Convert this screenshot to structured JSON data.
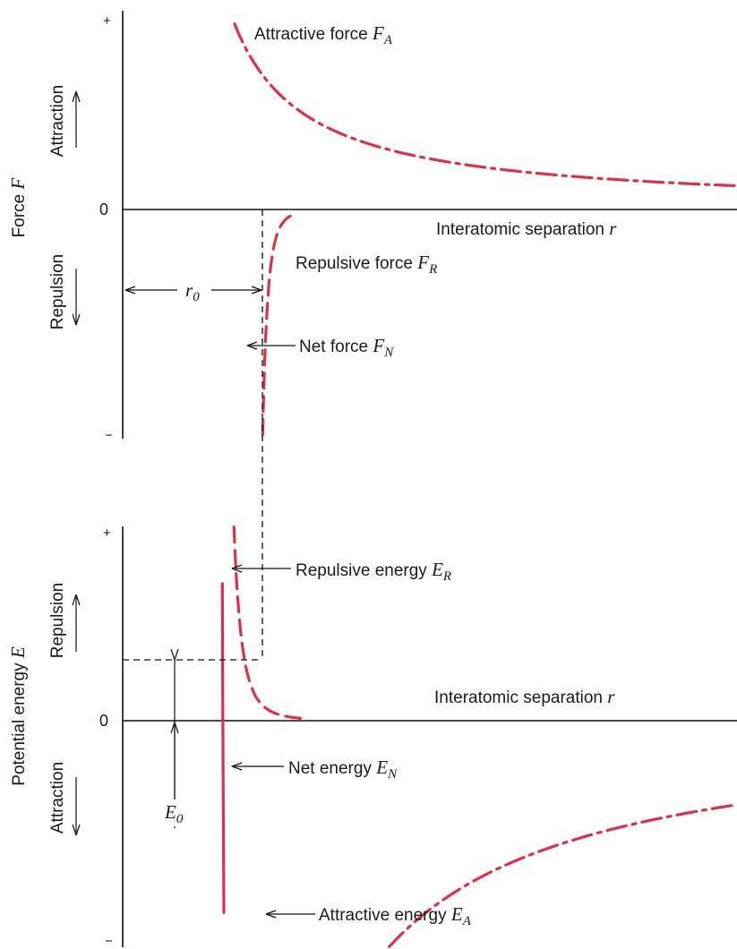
{
  "colors": {
    "curve": "#d9324a",
    "axis": "#111111"
  },
  "chart_data": [
    {
      "type": "line",
      "xlabel": "Interatomic separation",
      "xlabel_symbol": "r",
      "ylabel": "Force",
      "ylabel_symbol": "F",
      "ytick_labels": {
        "top": "+",
        "zero": "0",
        "bottom": "−"
      },
      "region_labels": {
        "upper": "Attraction",
        "lower": "Repulsion"
      },
      "r0_marker": {
        "symbol": "r",
        "subscript": "0"
      },
      "series": [
        {
          "label": "Attractive force",
          "symbol": "F",
          "subscript": "A",
          "style": "dash-dot"
        },
        {
          "label": "Repulsive force",
          "symbol": "F",
          "subscript": "R",
          "style": "dashed"
        },
        {
          "label": "Net force",
          "symbol": "F",
          "subscript": "N",
          "style": "solid"
        }
      ]
    },
    {
      "type": "line",
      "xlabel": "Interatomic separation",
      "xlabel_symbol": "r",
      "ylabel": "Potential energy",
      "ylabel_symbol": "E",
      "ytick_labels": {
        "top": "+",
        "zero": "0",
        "bottom": "−"
      },
      "region_labels": {
        "upper": "Repulsion",
        "lower": "Attraction"
      },
      "e0_marker": {
        "symbol": "E",
        "subscript": "0"
      },
      "series": [
        {
          "label": "Repulsive energy",
          "symbol": "E",
          "subscript": "R",
          "style": "dashed"
        },
        {
          "label": "Net energy",
          "symbol": "E",
          "subscript": "N",
          "style": "solid"
        },
        {
          "label": "Attractive energy",
          "symbol": "E",
          "subscript": "A",
          "style": "dash-dot"
        }
      ]
    }
  ]
}
